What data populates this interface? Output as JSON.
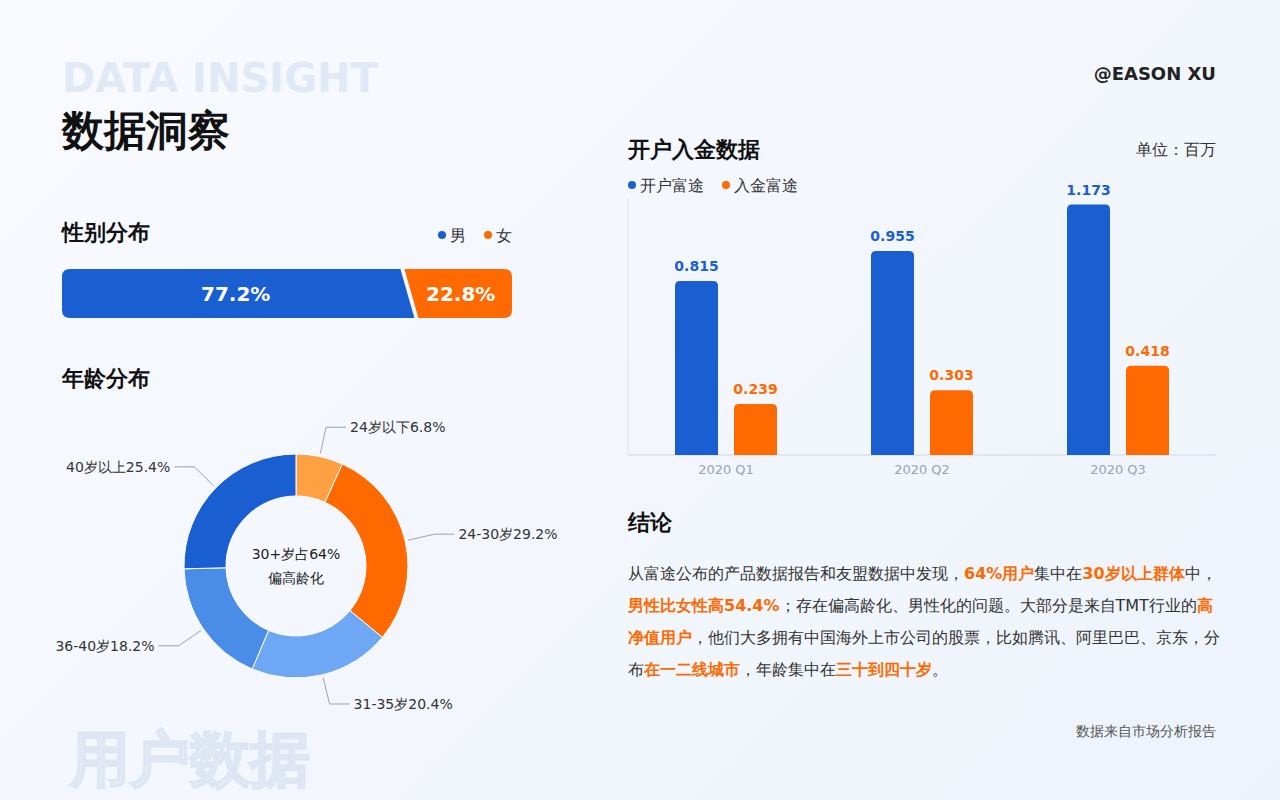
{
  "page": {
    "watermark_top": "DATA INSIGHT",
    "title": "数据洞察",
    "author": "@EASON XU",
    "watermark_bottom": "用户数据",
    "source": "数据来自市场分析报告"
  },
  "chart_data": [
    {
      "type": "bar",
      "title": "性别分布",
      "orientation": "horizontal",
      "stacked": true,
      "data_labels": true,
      "tick_labels": false,
      "legend": "top-right",
      "categories": [
        null
      ],
      "xlim": [
        0,
        100
      ],
      "xticks": [],
      "series": [
        {
          "name": "男",
          "color": "#1a5fd1",
          "values": [
            77.2
          ],
          "value_labels": [
            "77.2%"
          ]
        },
        {
          "name": "女",
          "color": "#ff6a00",
          "values": [
            22.8
          ],
          "value_labels": [
            "22.8%"
          ]
        }
      ]
    },
    {
      "type": "donut",
      "title": "年龄分布",
      "categories": [
        "24岁以下",
        "24-30岁",
        "31-35岁",
        "36-40岁",
        "40岁以上"
      ],
      "values": [
        6.8,
        29.2,
        20.4,
        18.2,
        25.4
      ],
      "value_labels": [
        "6.8%",
        "29.2%",
        "20.4%",
        "18.2%",
        "25.4%"
      ],
      "colors": [
        "#ffa042",
        "#ff6a00",
        "#6ea8f5",
        "#4a8de8",
        "#1a5fd1"
      ],
      "data_labels": true,
      "annotations": [
        "30+岁占64%",
        "偏高龄化"
      ]
    },
    {
      "type": "bar",
      "title": "开户入金数据",
      "subtitle": "单位：百万",
      "legend": "top-left",
      "data_labels": true,
      "grid": false,
      "tick_labels": "x",
      "categories": [
        "2020 Q1",
        "2020 Q2",
        "2020 Q3"
      ],
      "ylim": [
        0,
        1.2
      ],
      "yticks": [],
      "series": [
        {
          "name": "开户富途",
          "color": "#1a5fd1",
          "values": [
            0.815,
            0.955,
            1.173
          ]
        },
        {
          "name": "入金富途",
          "color": "#ff6a00",
          "values": [
            0.239,
            0.303,
            0.418
          ]
        }
      ]
    }
  ],
  "conclusion": {
    "title": "结论",
    "segments": [
      {
        "text": "从富途公布的产品数据报告和友盟数据中发现，",
        "highlight": false
      },
      {
        "text": "64%用户",
        "highlight": true
      },
      {
        "text": "集中在",
        "highlight": false
      },
      {
        "text": "30岁以上群体",
        "highlight": true
      },
      {
        "text": "中，",
        "highlight": false
      },
      {
        "text": "男性比女性高54.4%",
        "highlight": true
      },
      {
        "text": "；存在偏高龄化、男性化的问题。大部分是来自TMT行业的",
        "highlight": false
      },
      {
        "text": "高净值用户",
        "highlight": true
      },
      {
        "text": "，他们大多拥有中国海外上市公司的股票，比如腾讯、阿里巴巴、京东，分布",
        "highlight": false
      },
      {
        "text": "在一二线城市",
        "highlight": true
      },
      {
        "text": "，年龄集中在",
        "highlight": false
      },
      {
        "text": "三十到四十岁",
        "highlight": true
      },
      {
        "text": "。",
        "highlight": false
      }
    ]
  }
}
